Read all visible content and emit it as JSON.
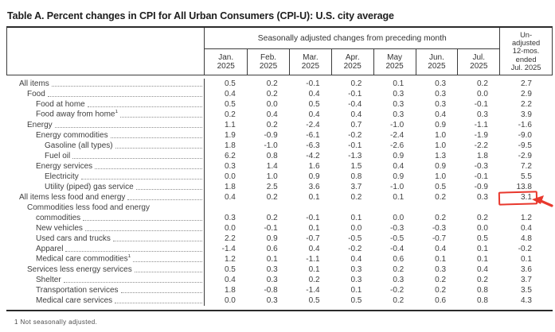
{
  "title": "Table A. Percent changes in CPI for All Urban Consumers (CPI-U): U.S. city average",
  "table": {
    "spanner": "Seasonally adjusted changes from preceding month",
    "months": [
      {
        "m": "Jan.",
        "y": "2025"
      },
      {
        "m": "Feb.",
        "y": "2025"
      },
      {
        "m": "Mar.",
        "y": "2025"
      },
      {
        "m": "Apr.",
        "y": "2025"
      },
      {
        "m": "May",
        "y": "2025"
      },
      {
        "m": "Jun.",
        "y": "2025"
      },
      {
        "m": "Jul.",
        "y": "2025"
      }
    ],
    "unadjusted_lines": [
      "Un-",
      "adjusted",
      "12-mos.",
      "ended",
      "Jul. 2025"
    ],
    "rows": [
      {
        "label": "All items",
        "indent": 0,
        "values": [
          "0.5",
          "0.2",
          "-0.1",
          "0.2",
          "0.1",
          "0.3",
          "0.2"
        ],
        "yr12": "2.7"
      },
      {
        "label": "Food",
        "indent": 1,
        "values": [
          "0.4",
          "0.2",
          "0.4",
          "-0.1",
          "0.3",
          "0.3",
          "0.0"
        ],
        "yr12": "2.9"
      },
      {
        "label": "Food at home",
        "indent": 2,
        "values": [
          "0.5",
          "0.0",
          "0.5",
          "-0.4",
          "0.3",
          "0.3",
          "-0.1"
        ],
        "yr12": "2.2"
      },
      {
        "label": "Food away from home",
        "sup": "1",
        "indent": 2,
        "values": [
          "0.2",
          "0.4",
          "0.4",
          "0.4",
          "0.3",
          "0.4",
          "0.3"
        ],
        "yr12": "3.9"
      },
      {
        "label": "Energy",
        "indent": 1,
        "values": [
          "1.1",
          "0.2",
          "-2.4",
          "0.7",
          "-1.0",
          "0.9",
          "-1.1"
        ],
        "yr12": "-1.6"
      },
      {
        "label": "Energy commodities",
        "indent": 2,
        "values": [
          "1.9",
          "-0.9",
          "-6.1",
          "-0.2",
          "-2.4",
          "1.0",
          "-1.9"
        ],
        "yr12": "-9.0"
      },
      {
        "label": "Gasoline (all types)",
        "indent": 3,
        "values": [
          "1.8",
          "-1.0",
          "-6.3",
          "-0.1",
          "-2.6",
          "1.0",
          "-2.2"
        ],
        "yr12": "-9.5"
      },
      {
        "label": "Fuel oil",
        "indent": 3,
        "values": [
          "6.2",
          "0.8",
          "-4.2",
          "-1.3",
          "0.9",
          "1.3",
          "1.8"
        ],
        "yr12": "-2.9"
      },
      {
        "label": "Energy services",
        "indent": 2,
        "values": [
          "0.3",
          "1.4",
          "1.6",
          "1.5",
          "0.4",
          "0.9",
          "-0.3"
        ],
        "yr12": "7.2"
      },
      {
        "label": "Electricity",
        "indent": 3,
        "values": [
          "0.0",
          "1.0",
          "0.9",
          "0.8",
          "0.9",
          "1.0",
          "-0.1"
        ],
        "yr12": "5.5"
      },
      {
        "label": "Utility (piped) gas service",
        "indent": 3,
        "values": [
          "1.8",
          "2.5",
          "3.6",
          "3.7",
          "-1.0",
          "0.5",
          "-0.9"
        ],
        "yr12": "13.8"
      },
      {
        "label": "All items less food and energy",
        "indent": 0,
        "values": [
          "0.4",
          "0.2",
          "0.1",
          "0.2",
          "0.1",
          "0.2",
          "0.3"
        ],
        "yr12": "3.1",
        "highlight": true
      },
      {
        "pre": "Commodities less food and energy",
        "label": "commodities",
        "indent": 2,
        "values": [
          "0.3",
          "0.2",
          "-0.1",
          "0.1",
          "0.0",
          "0.2",
          "0.2"
        ],
        "yr12": "1.2"
      },
      {
        "label": "New vehicles",
        "indent": 2,
        "values": [
          "0.0",
          "-0.1",
          "0.1",
          "0.0",
          "-0.3",
          "-0.3",
          "0.0"
        ],
        "yr12": "0.4"
      },
      {
        "label": "Used cars and trucks",
        "indent": 2,
        "values": [
          "2.2",
          "0.9",
          "-0.7",
          "-0.5",
          "-0.5",
          "-0.7",
          "0.5"
        ],
        "yr12": "4.8"
      },
      {
        "label": "Apparel",
        "indent": 2,
        "values": [
          "-1.4",
          "0.6",
          "0.4",
          "-0.2",
          "-0.4",
          "0.4",
          "0.1"
        ],
        "yr12": "-0.2"
      },
      {
        "label": "Medical care commodities",
        "sup": "1",
        "indent": 2,
        "values": [
          "1.2",
          "0.1",
          "-1.1",
          "0.4",
          "0.6",
          "0.1",
          "0.1"
        ],
        "yr12": "0.1"
      },
      {
        "label": "Services less energy services",
        "indent": 1,
        "values": [
          "0.5",
          "0.3",
          "0.1",
          "0.3",
          "0.2",
          "0.3",
          "0.4"
        ],
        "yr12": "3.6"
      },
      {
        "label": "Shelter",
        "indent": 2,
        "values": [
          "0.4",
          "0.3",
          "0.2",
          "0.3",
          "0.3",
          "0.2",
          "0.2"
        ],
        "yr12": "3.7"
      },
      {
        "label": "Transportation services",
        "indent": 2,
        "values": [
          "1.8",
          "-0.8",
          "-1.4",
          "0.1",
          "-0.2",
          "0.2",
          "0.8"
        ],
        "yr12": "3.5"
      },
      {
        "label": "Medical care services",
        "indent": 2,
        "values": [
          "0.0",
          "0.3",
          "0.5",
          "0.5",
          "0.2",
          "0.6",
          "0.8"
        ],
        "yr12": "4.3"
      }
    ],
    "footnote": "1 Not seasonally adjusted."
  },
  "annotation": {
    "color": "#e8382d",
    "target_value": "3.1",
    "shape": "hand-drawn box with cursor arrow"
  }
}
